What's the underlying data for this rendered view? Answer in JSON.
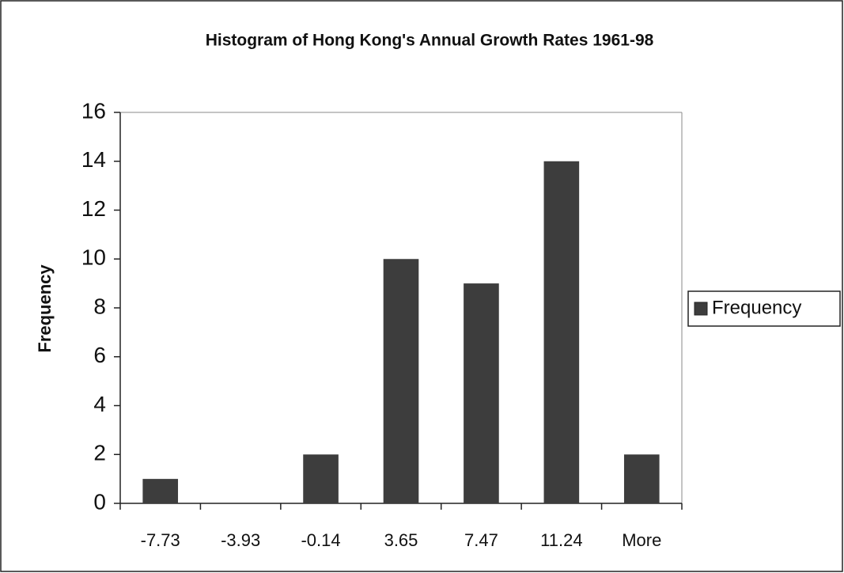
{
  "chart_data": {
    "type": "bar",
    "title": "Histogram of Hong Kong's Annual Growth Rates 1961-98",
    "y_label": "Frequency",
    "categories": [
      "-7.73",
      "-3.93",
      "-0.14",
      "3.65",
      "7.47",
      "11.24",
      "More"
    ],
    "series": [
      {
        "name": "Frequency",
        "color": "#3d3d3d",
        "values": [
          1,
          0,
          2,
          10,
          9,
          14,
          2
        ]
      }
    ],
    "ylim": [
      0,
      16
    ],
    "yticks": [
      0,
      2,
      4,
      6,
      8,
      10,
      12,
      14,
      16
    ],
    "grid": false,
    "legend": "right"
  }
}
